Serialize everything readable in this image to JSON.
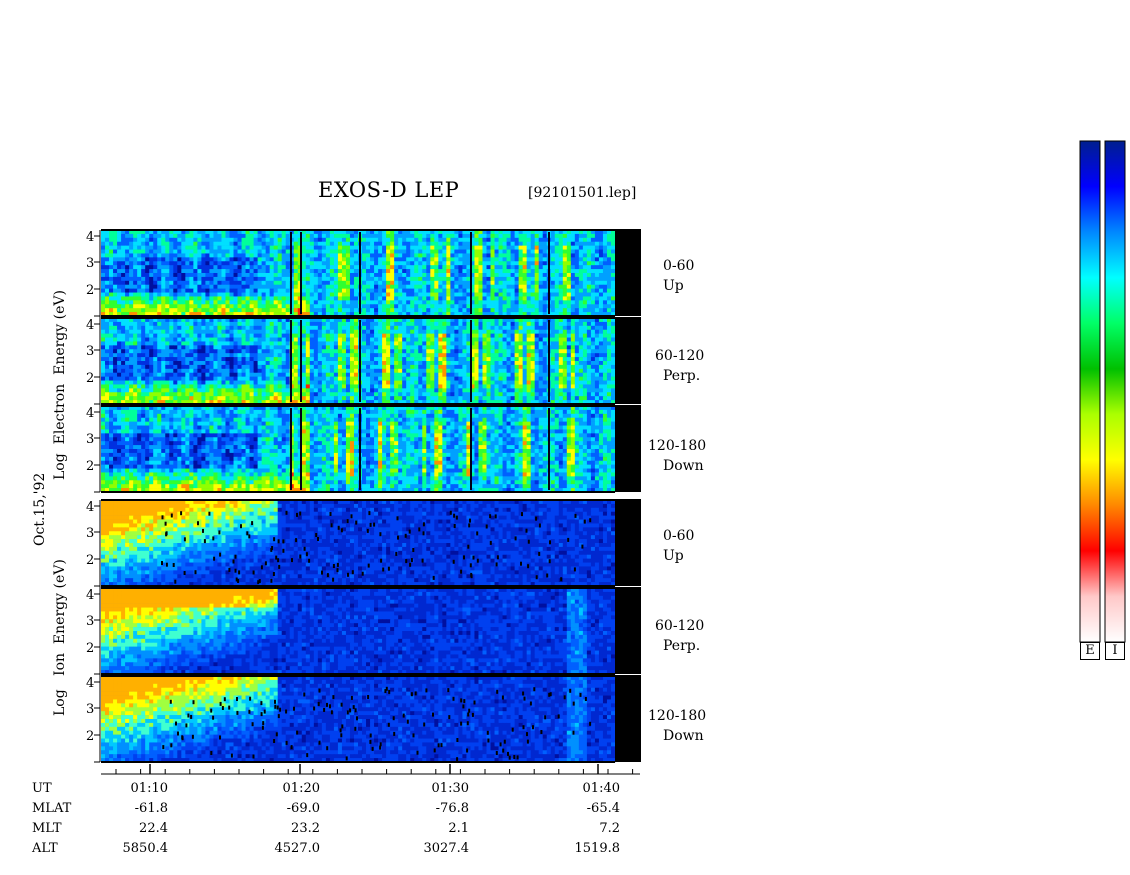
{
  "header": {
    "title": "EXOS-D LEP",
    "filename": "[92101501.lep]"
  },
  "date_label": "Oct.15,'92",
  "electron_axis_label": [
    "Log",
    "Electron",
    "Energy",
    "(eV)"
  ],
  "ion_axis_label": [
    "Log",
    "Ion",
    "Energy",
    "(eV)"
  ],
  "panels": [
    {
      "species": "Electron",
      "range": "0-60",
      "dir": "Up"
    },
    {
      "species": "Electron",
      "range": "60-120",
      "dir": "Perp."
    },
    {
      "species": "Electron",
      "range": "120-180",
      "dir": "Down"
    },
    {
      "species": "Ion",
      "range": "0-60",
      "dir": "Up"
    },
    {
      "species": "Ion",
      "range": "60-120",
      "dir": "Perp."
    },
    {
      "species": "Ion",
      "range": "120-180",
      "dir": "Down"
    }
  ],
  "y_ticks": [
    "4",
    "3",
    "2"
  ],
  "x_axis": {
    "rows": [
      {
        "name": "UT",
        "values": [
          "01:10",
          "01:20",
          "01:30",
          "01:40"
        ]
      },
      {
        "name": "MLAT",
        "values": [
          "-61.8",
          "-69.0",
          "-76.8",
          "-65.4"
        ]
      },
      {
        "name": "MLT",
        "values": [
          "22.4",
          "23.2",
          "2.1",
          "7.2"
        ]
      },
      {
        "name": "ALT",
        "values": [
          "5850.4",
          "4527.0",
          "3027.4",
          "1519.8"
        ]
      }
    ]
  },
  "colorbar": {
    "labels": [
      "E",
      "I"
    ],
    "colors": [
      "#001f8f",
      "#0000ff",
      "#0088ff",
      "#00ffff",
      "#00ff66",
      "#00c000",
      "#aaff00",
      "#ffff00",
      "#ff8800",
      "#ff0000",
      "#ffc8c8",
      "#ffffff"
    ]
  },
  "chart_data": {
    "type": "heatmap",
    "title": "EXOS-D LEP",
    "xlabel": "UT",
    "ylabel": "Log Energy (eV)",
    "x_ticks": [
      "01:10",
      "01:20",
      "01:30",
      "01:40"
    ],
    "y_ticks": [
      2,
      3,
      4
    ],
    "ylim": [
      1,
      4.2
    ],
    "series": [
      {
        "name": "Electron 0-60 Up"
      },
      {
        "name": "Electron 60-120 Perp."
      },
      {
        "name": "Electron 120-180 Down"
      },
      {
        "name": "Ion 0-60 Up"
      },
      {
        "name": "Ion 60-120 Perp."
      },
      {
        "name": "Ion 120-180 Down"
      }
    ]
  }
}
